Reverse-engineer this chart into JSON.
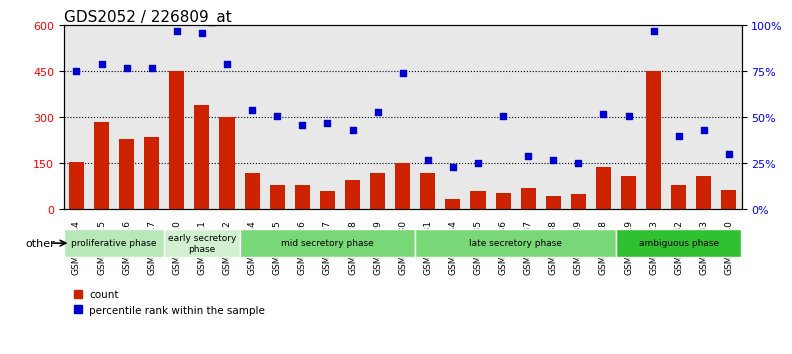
{
  "title": "GDS2052 / 226809_at",
  "samples": [
    "GSM109814",
    "GSM109815",
    "GSM109816",
    "GSM109817",
    "GSM109820",
    "GSM109821",
    "GSM109822",
    "GSM109824",
    "GSM109825",
    "GSM109826",
    "GSM109827",
    "GSM109828",
    "GSM109829",
    "GSM109830",
    "GSM109831",
    "GSM109834",
    "GSM109835",
    "GSM109836",
    "GSM109837",
    "GSM109838",
    "GSM109839",
    "GSM109818",
    "GSM109819",
    "GSM109823",
    "GSM109832",
    "GSM109833",
    "GSM109840"
  ],
  "counts": [
    155,
    285,
    230,
    235,
    450,
    340,
    300,
    120,
    80,
    80,
    60,
    95,
    120,
    150,
    120,
    35,
    60,
    55,
    70,
    45,
    50,
    140,
    110,
    450,
    80,
    110,
    65
  ],
  "percentiles": [
    75,
    79,
    77,
    77,
    97,
    96,
    79,
    54,
    51,
    46,
    47,
    43,
    53,
    74,
    27,
    23,
    25,
    51,
    29,
    27,
    25,
    52,
    51,
    97,
    40,
    43,
    30
  ],
  "phases": [
    {
      "name": "proliferative phase",
      "start": 0,
      "end": 4,
      "color": "#c8f0c8"
    },
    {
      "name": "early secretory\nphase",
      "start": 4,
      "end": 7,
      "color": "#d8f8d8"
    },
    {
      "name": "mid secretory phase",
      "start": 7,
      "end": 14,
      "color": "#a0e8a0"
    },
    {
      "name": "late secretory phase",
      "start": 14,
      "end": 22,
      "color": "#a0e8a0"
    },
    {
      "name": "ambiguous phase",
      "start": 22,
      "end": 27,
      "color": "#50d050"
    }
  ],
  "ylim_left": [
    0,
    600
  ],
  "ylim_right": [
    0,
    100
  ],
  "yticks_left": [
    0,
    150,
    300,
    450,
    600
  ],
  "yticks_right": [
    0,
    25,
    50,
    75,
    100
  ],
  "bar_color": "#cc2200",
  "dot_color": "#0000cc",
  "bg_color": "#e8e8e8",
  "grid_color": "#000000",
  "title_fontsize": 11,
  "tick_fontsize": 7,
  "phase_colors": [
    "#c8f0c8",
    "#d8f8d8",
    "#80e080",
    "#80e080",
    "#40cc40"
  ]
}
